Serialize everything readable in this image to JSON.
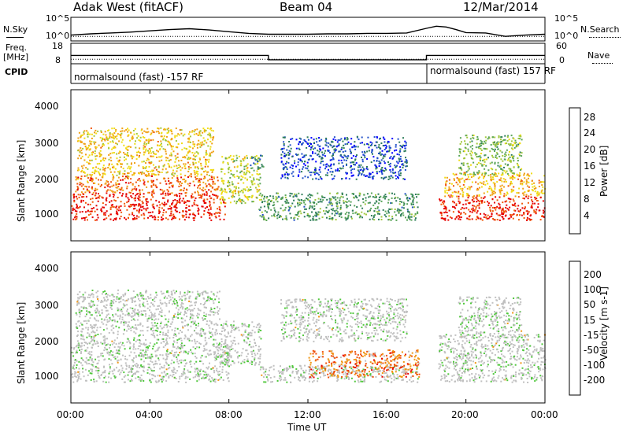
{
  "header": {
    "radar": "Adak West (fitACF)",
    "beam": "Beam 04",
    "date": "12/Mar/2014"
  },
  "side_labels": {
    "nsky": "N.Sky",
    "nsearch": "N.Search",
    "freq_line1": "Freq.",
    "freq_line2": "[MHz]",
    "nave": "Nave",
    "cpid": "CPID"
  },
  "cpid_labels": [
    "normalsound (fast) -157 RF",
    "normalsound (fast) 157 RF"
  ],
  "chart_data": [
    {
      "type": "line",
      "panel": "noise",
      "y_ticks": [
        "10^5",
        "10^0"
      ],
      "y_ticks_right": [
        "10^5",
        "10^0"
      ],
      "series": [
        {
          "name": "N.Sky",
          "x_hours": [
            0,
            1,
            2,
            3,
            4,
            5,
            6,
            7,
            8,
            9,
            10,
            11,
            12,
            13,
            14,
            15,
            16,
            17,
            18,
            18.5,
            19,
            19.5,
            20,
            21,
            22,
            23,
            24
          ],
          "log_values": [
            1.0,
            1.3,
            1.5,
            1.7,
            2.0,
            2.3,
            2.5,
            2.2,
            1.8,
            1.4,
            1.2,
            1.2,
            1.2,
            1.3,
            1.3,
            1.4,
            1.4,
            1.5,
            2.6,
            3.1,
            2.9,
            2.3,
            1.6,
            1.5,
            0.7,
            1.0,
            1.2
          ]
        },
        {
          "name": "N.Search",
          "x_hours": [
            0,
            24
          ],
          "log_values": [
            0.7,
            0.7
          ]
        }
      ]
    },
    {
      "type": "line",
      "panel": "freq-nave",
      "y_ticks": [
        "18",
        "8"
      ],
      "y_ticks_right": [
        "60",
        "0"
      ],
      "series": [
        {
          "name": "Freq.",
          "x_hours": [
            0,
            10,
            10,
            18,
            18,
            24
          ],
          "values": [
            11.9,
            11.9,
            9.4,
            9.4,
            11.9,
            11.9
          ]
        },
        {
          "name": "Nave",
          "x_hours": [
            0,
            24
          ],
          "values": [
            10,
            10
          ]
        }
      ]
    },
    {
      "type": "heatmap",
      "panel": "power",
      "ylabel": "Slant Range [km]",
      "y_ticks": [
        "4000",
        "3000",
        "2000",
        "1000"
      ],
      "ylim": [
        180,
        4600
      ],
      "colorbar_label": "Power [dB]",
      "colorbar_ticks": [
        "28",
        "24",
        "20",
        "16",
        "12",
        "8",
        "4"
      ],
      "colorscale": [
        "#0000ff",
        "#2050c8",
        "#2e7d5a",
        "#5aa55a",
        "#a0c83c",
        "#f0dc14",
        "#f0a014",
        "#f05a0a",
        "#e60000"
      ],
      "blobs": [
        {
          "t": [
            0.0,
            7.8
          ],
          "r": [
            800,
            1600
          ],
          "level": 0.93
        },
        {
          "t": [
            0.2,
            7.5
          ],
          "r": [
            1600,
            2100
          ],
          "level": 0.8
        },
        {
          "t": [
            0.3,
            7.2
          ],
          "r": [
            2100,
            3500
          ],
          "level": 0.65
        },
        {
          "t": [
            7.5,
            9.6
          ],
          "r": [
            1300,
            2700
          ],
          "level": 0.55
        },
        {
          "t": [
            9.0,
            9.8
          ],
          "r": [
            2300,
            2700
          ],
          "level": 0.3
        },
        {
          "t": [
            9.5,
            17.6
          ],
          "r": [
            800,
            1600
          ],
          "level": 0.35
        },
        {
          "t": [
            10.6,
            17.0
          ],
          "r": [
            2000,
            3250
          ],
          "level": 0.18
        },
        {
          "t": [
            18.6,
            24.0
          ],
          "r": [
            800,
            1500
          ],
          "level": 0.93
        },
        {
          "t": [
            18.9,
            24.0
          ],
          "r": [
            1500,
            2200
          ],
          "level": 0.7
        },
        {
          "t": [
            19.6,
            22.8
          ],
          "r": [
            2100,
            3300
          ],
          "level": 0.45
        }
      ]
    },
    {
      "type": "heatmap",
      "panel": "velocity",
      "ylabel": "Slant Range [km]",
      "y_ticks": [
        "4000",
        "3000",
        "2000",
        "1000"
      ],
      "ylim": [
        180,
        4600
      ],
      "colorbar_label": "Velocity [m s-1]",
      "colorbar_ticks": [
        "200",
        "100",
        "50",
        "15",
        "-15",
        "-50",
        "-100",
        "-200"
      ],
      "colorscale": [
        "#e60000",
        "#f0500a",
        "#f09614",
        "#c0c0c0",
        "#c0c0c0",
        "#50c83c",
        "#1e8c1e",
        "#0a3c96",
        "#0000ff"
      ],
      "blobs": [
        {
          "t": [
            0.0,
            8.0
          ],
          "r": [
            800,
            1900
          ],
          "level": 0.47
        },
        {
          "t": [
            0.2,
            7.5
          ],
          "r": [
            1900,
            3500
          ],
          "level": 0.47
        },
        {
          "t": [
            7.5,
            9.6
          ],
          "r": [
            1300,
            2600
          ],
          "level": 0.47
        },
        {
          "t": [
            9.5,
            17.6
          ],
          "r": [
            800,
            1300
          ],
          "level": 0.47
        },
        {
          "t": [
            12.0,
            17.6
          ],
          "r": [
            950,
            1750
          ],
          "level": 0.22
        },
        {
          "t": [
            10.6,
            17.0
          ],
          "r": [
            2000,
            3250
          ],
          "level": 0.47
        },
        {
          "t": [
            18.6,
            24.0
          ],
          "r": [
            800,
            2200
          ],
          "level": 0.47
        },
        {
          "t": [
            19.6,
            22.8
          ],
          "r": [
            2100,
            3300
          ],
          "level": 0.47
        }
      ]
    }
  ],
  "x_axis": {
    "ticks": [
      "00:00",
      "04:00",
      "08:00",
      "12:00",
      "16:00",
      "20:00",
      "00:00"
    ],
    "tick_hours": [
      0,
      4,
      8,
      12,
      16,
      20,
      24
    ],
    "label": "Time UT",
    "range_hours": [
      0,
      24
    ]
  }
}
